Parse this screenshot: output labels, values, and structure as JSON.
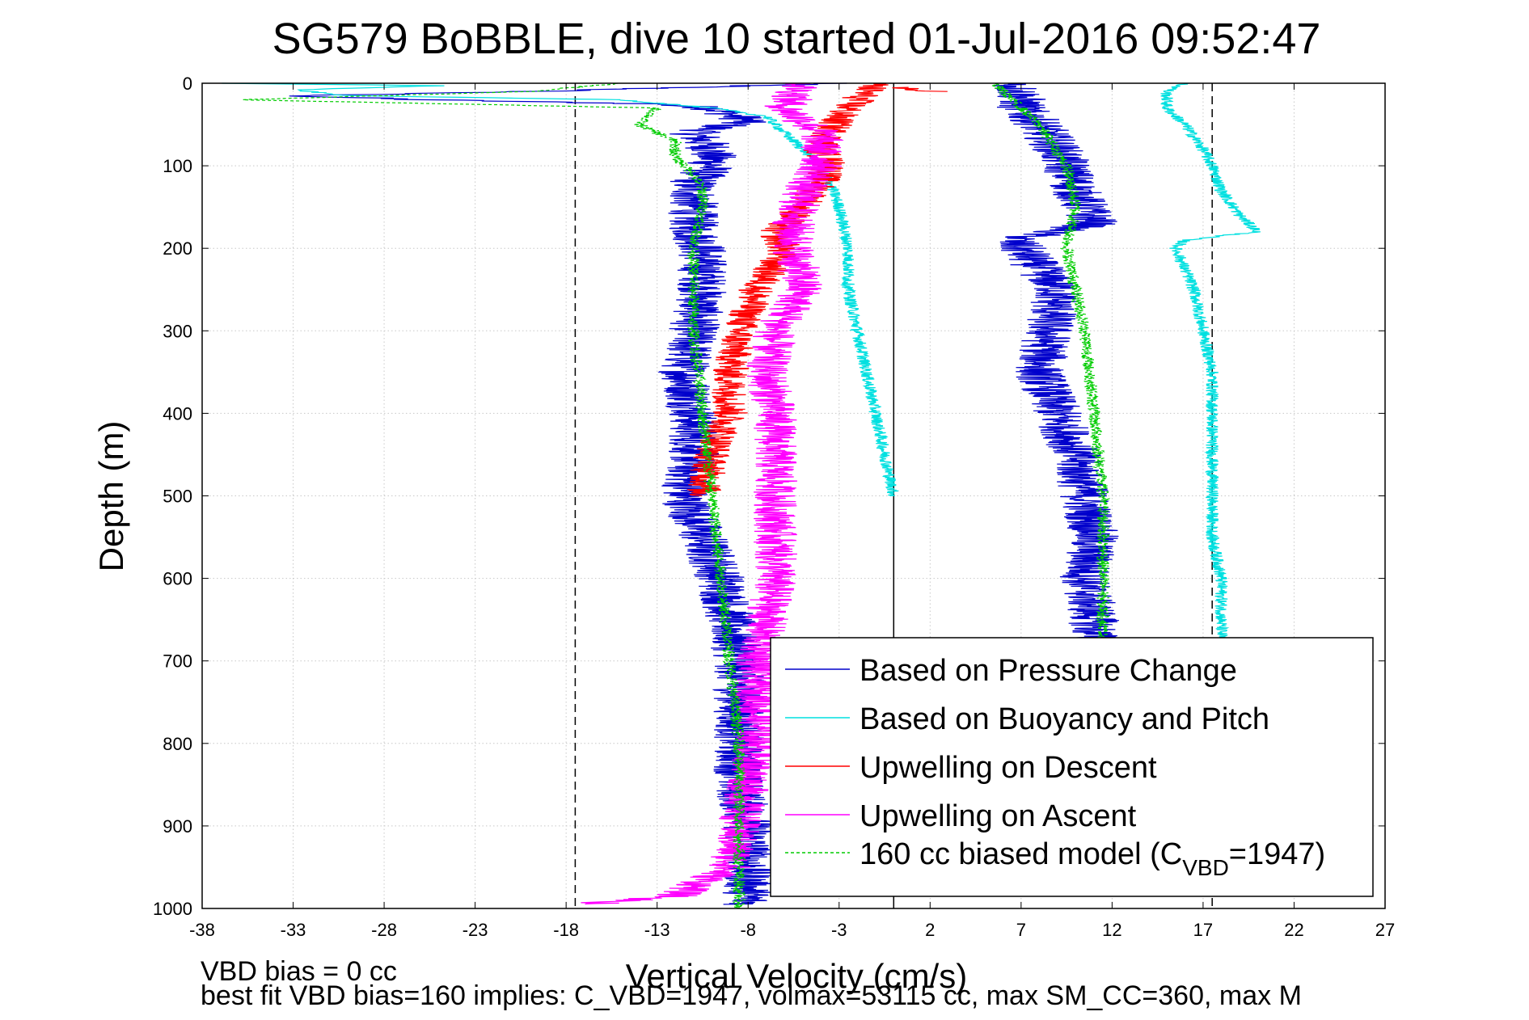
{
  "chart_data": {
    "type": "line",
    "title": "SG579 BoBBLE, dive 10 started 01-Jul-2016 09:52:47",
    "xlabel": "Vertical Velocity (cm/s)",
    "ylabel": "Depth (m)",
    "xlim": [
      -38,
      27
    ],
    "ylim": [
      0,
      1000
    ],
    "y_reversed": true,
    "grid": true,
    "x_ticks": [
      -38,
      -33,
      -28,
      -23,
      -18,
      -13,
      -8,
      -3,
      2,
      7,
      12,
      17,
      22,
      27
    ],
    "y_ticks": [
      0,
      100,
      200,
      300,
      400,
      500,
      600,
      700,
      800,
      900,
      1000
    ],
    "reference_lines": [
      {
        "x": -17.5,
        "style": "dashed",
        "color": "#000000"
      },
      {
        "x": 0,
        "style": "solid",
        "color": "#000000"
      },
      {
        "x": 17.5,
        "style": "dashed",
        "color": "#000000"
      }
    ],
    "legend_position": "bottom-right",
    "series": [
      {
        "name": "Based on Pressure Change",
        "color": "#0000cc",
        "style": "solid",
        "noise": 1.4,
        "segments": [
          {
            "depth": [
              0,
              10,
              15,
              20,
              25,
              30,
              45,
              60,
              80,
              100,
              120,
              150,
              180,
              200,
              250,
              300,
              350,
              400,
              450,
              500,
              550,
              600,
              650,
              700,
              750,
              800,
              850,
              900,
              950,
              995
            ],
            "x": [
              -3,
              -20,
              -33,
              -26,
              -13,
              -10,
              -8,
              -11,
              -10,
              -10,
              -11,
              -11,
              -11,
              -10.5,
              -10.5,
              -11,
              -11.5,
              -11,
              -11,
              -11.5,
              -10.5,
              -9.5,
              -9,
              -8.5,
              -8.5,
              -8.5,
              -8.5,
              -8,
              -8,
              -8
            ]
          },
          {
            "depth": [
              0,
              15,
              30,
              50,
              80,
              100,
              130,
              170,
              190,
              200,
              250,
              300,
              350,
              400,
              450,
              500,
              550,
              600,
              650,
              700
            ],
            "x": [
              6.5,
              7,
              7,
              8,
              9,
              9.5,
              10,
              11,
              6.5,
              7,
              9,
              8.5,
              8,
              9,
              10,
              10.5,
              11,
              10.5,
              11,
              11
            ]
          }
        ]
      },
      {
        "name": "Based on Buoyancy and Pitch",
        "color": "#00e0e0",
        "style": "solid",
        "noise": 0.35,
        "segments": [
          {
            "depth": [
              0,
              3,
              8,
              15,
              20,
              30,
              40,
              60,
              80,
              100,
              120,
              150,
              200,
              250,
              300,
              350,
              400,
              450,
              500
            ],
            "x": [
              -37,
              -25,
              -33,
              -30,
              -15,
              -10,
              -7,
              -6,
              -5,
              -4,
              -3.5,
              -3,
              -2.5,
              -2.5,
              -2,
              -1.5,
              -1,
              -0.5,
              0
            ]
          },
          {
            "depth": [
              0,
              10,
              30,
              50,
              80,
              100,
              130,
              160,
              180,
              190,
              200,
              250,
              300,
              350,
              400,
              450,
              500,
              550,
              600,
              650,
              700
            ],
            "x": [
              16,
              15,
              15,
              16,
              17,
              17.5,
              18,
              19,
              20,
              16,
              15.5,
              16.5,
              17,
              17.5,
              17.5,
              17.5,
              17.5,
              17.5,
              18,
              18,
              18
            ]
          }
        ]
      },
      {
        "name": "Upwelling on Descent",
        "color": "#ff0000",
        "style": "solid",
        "noise": 1.0,
        "segments": [
          {
            "depth": [
              0,
              20,
              40,
              60,
              80,
              100,
              120,
              150,
              180,
              200,
              250,
              300,
              350,
              400,
              450,
              500
            ],
            "x": [
              -1,
              -2,
              -3,
              -3.5,
              -4,
              -3.5,
              -4,
              -5,
              -6.5,
              -6,
              -7.5,
              -8.5,
              -9,
              -9,
              -10,
              -10.5
            ]
          },
          {
            "depth": [
              5,
              10
            ],
            "x": [
              0.5,
              2
            ]
          }
        ]
      },
      {
        "name": "Upwelling on Ascent",
        "color": "#ff00ff",
        "style": "solid",
        "noise": 1.2,
        "segments": [
          {
            "depth": [
              0,
              30,
              60,
              100,
              130,
              170,
              200,
              250,
              300,
              350,
              400,
              450,
              500,
              550,
              600,
              650,
              700,
              750,
              800,
              850,
              900,
              950,
              985,
              995
            ],
            "x": [
              -5,
              -6,
              -4,
              -4,
              -5,
              -5.5,
              -5.5,
              -5,
              -6.5,
              -7,
              -6.5,
              -6.5,
              -6.5,
              -6.5,
              -6.5,
              -7,
              -7.5,
              -7.5,
              -7.5,
              -8,
              -8.5,
              -9,
              -12,
              -17
            ]
          }
        ]
      },
      {
        "name": "160 cc biased model (C_VBD=1947)",
        "legend_main": "160 cc biased model (C",
        "legend_sub": "VBD",
        "legend_tail": "=1947)",
        "color": "#00cc00",
        "style": "dashed",
        "noise": 0.35,
        "segments": [
          {
            "depth": [
              0,
              10,
              20,
              30,
              50,
              70,
              90,
              110,
              130,
              150,
              200,
              250,
              300,
              400,
              500,
              600,
              700,
              800,
              900,
              1000
            ],
            "x": [
              -15,
              -20,
              -36,
              -13,
              -14,
              -12,
              -12,
              -11,
              -10.5,
              -10.5,
              -11,
              -11,
              -11,
              -10.5,
              -10,
              -9.5,
              -9,
              -8.5,
              -8.5,
              -8.5
            ]
          },
          {
            "depth": [
              0,
              20,
              50,
              100,
              150,
              200,
              250,
              300,
              400,
              500,
              600,
              700
            ],
            "x": [
              5.5,
              6.5,
              8,
              9.5,
              10,
              9.5,
              10,
              10.5,
              11,
              11.5,
              11.5,
              11.5
            ]
          }
        ]
      }
    ]
  },
  "footnotes": {
    "line1": "VBD bias = 0 cc",
    "line2": "best fit VBD bias=160 implies: C_VBD=1947, volmax=53115 cc, max SM_CC=360, max M"
  },
  "colors": {
    "grid": "#c8c8c8",
    "axes": "#000000",
    "background": "#ffffff"
  }
}
